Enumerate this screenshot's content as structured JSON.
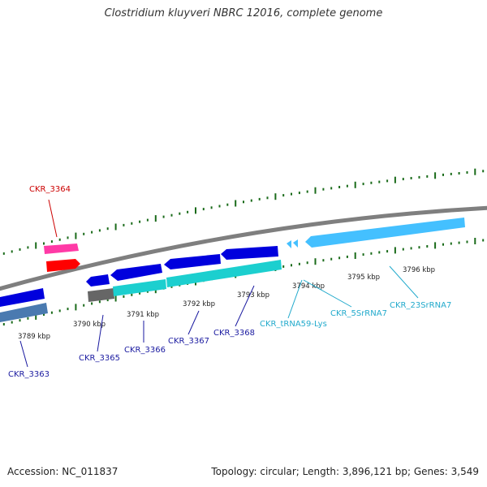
{
  "title": "Clostridium kluyveri NBRC 12016, complete genome",
  "footer": {
    "accession": "Accession: NC_011837",
    "summary": "Topology: circular; Length: 3,896,121 bp; Genes: 3,549"
  },
  "colors": {
    "backbone": "#7f7f7f",
    "cds_plus": "#ff3aa6",
    "cds_minus_red": "#ff0000",
    "cds_blue": "#0000dd",
    "cds_steel": "#4a7ab0",
    "cds_cyan": "#1ccfcf",
    "cds_gray": "#666666",
    "rna": "#44c0ff",
    "tick_green": "#1a6b1a",
    "label_red": "#cc0000",
    "label_blue": "#1a1aa0",
    "label_cyan": "#22aacc"
  },
  "kbp_labels": [
    "3789 kbp",
    "3790 kbp",
    "3791 kbp",
    "3792 kbp",
    "3793 kbp",
    "3794 kbp",
    "3795 kbp",
    "3796 kbp"
  ],
  "gene_labels": {
    "ckr_3364": "CKR_3364",
    "ckr_3363": "CKR_3363",
    "ckr_3365": "CKR_3365",
    "ckr_3366": "CKR_3366",
    "ckr_3367": "CKR_3367",
    "ckr_3368": "CKR_3368",
    "trna": "CKR_tRNA59-Lys",
    "rrna5s": "CKR_5SrRNA7",
    "rrna23s": "CKR_23SrRNA7"
  }
}
